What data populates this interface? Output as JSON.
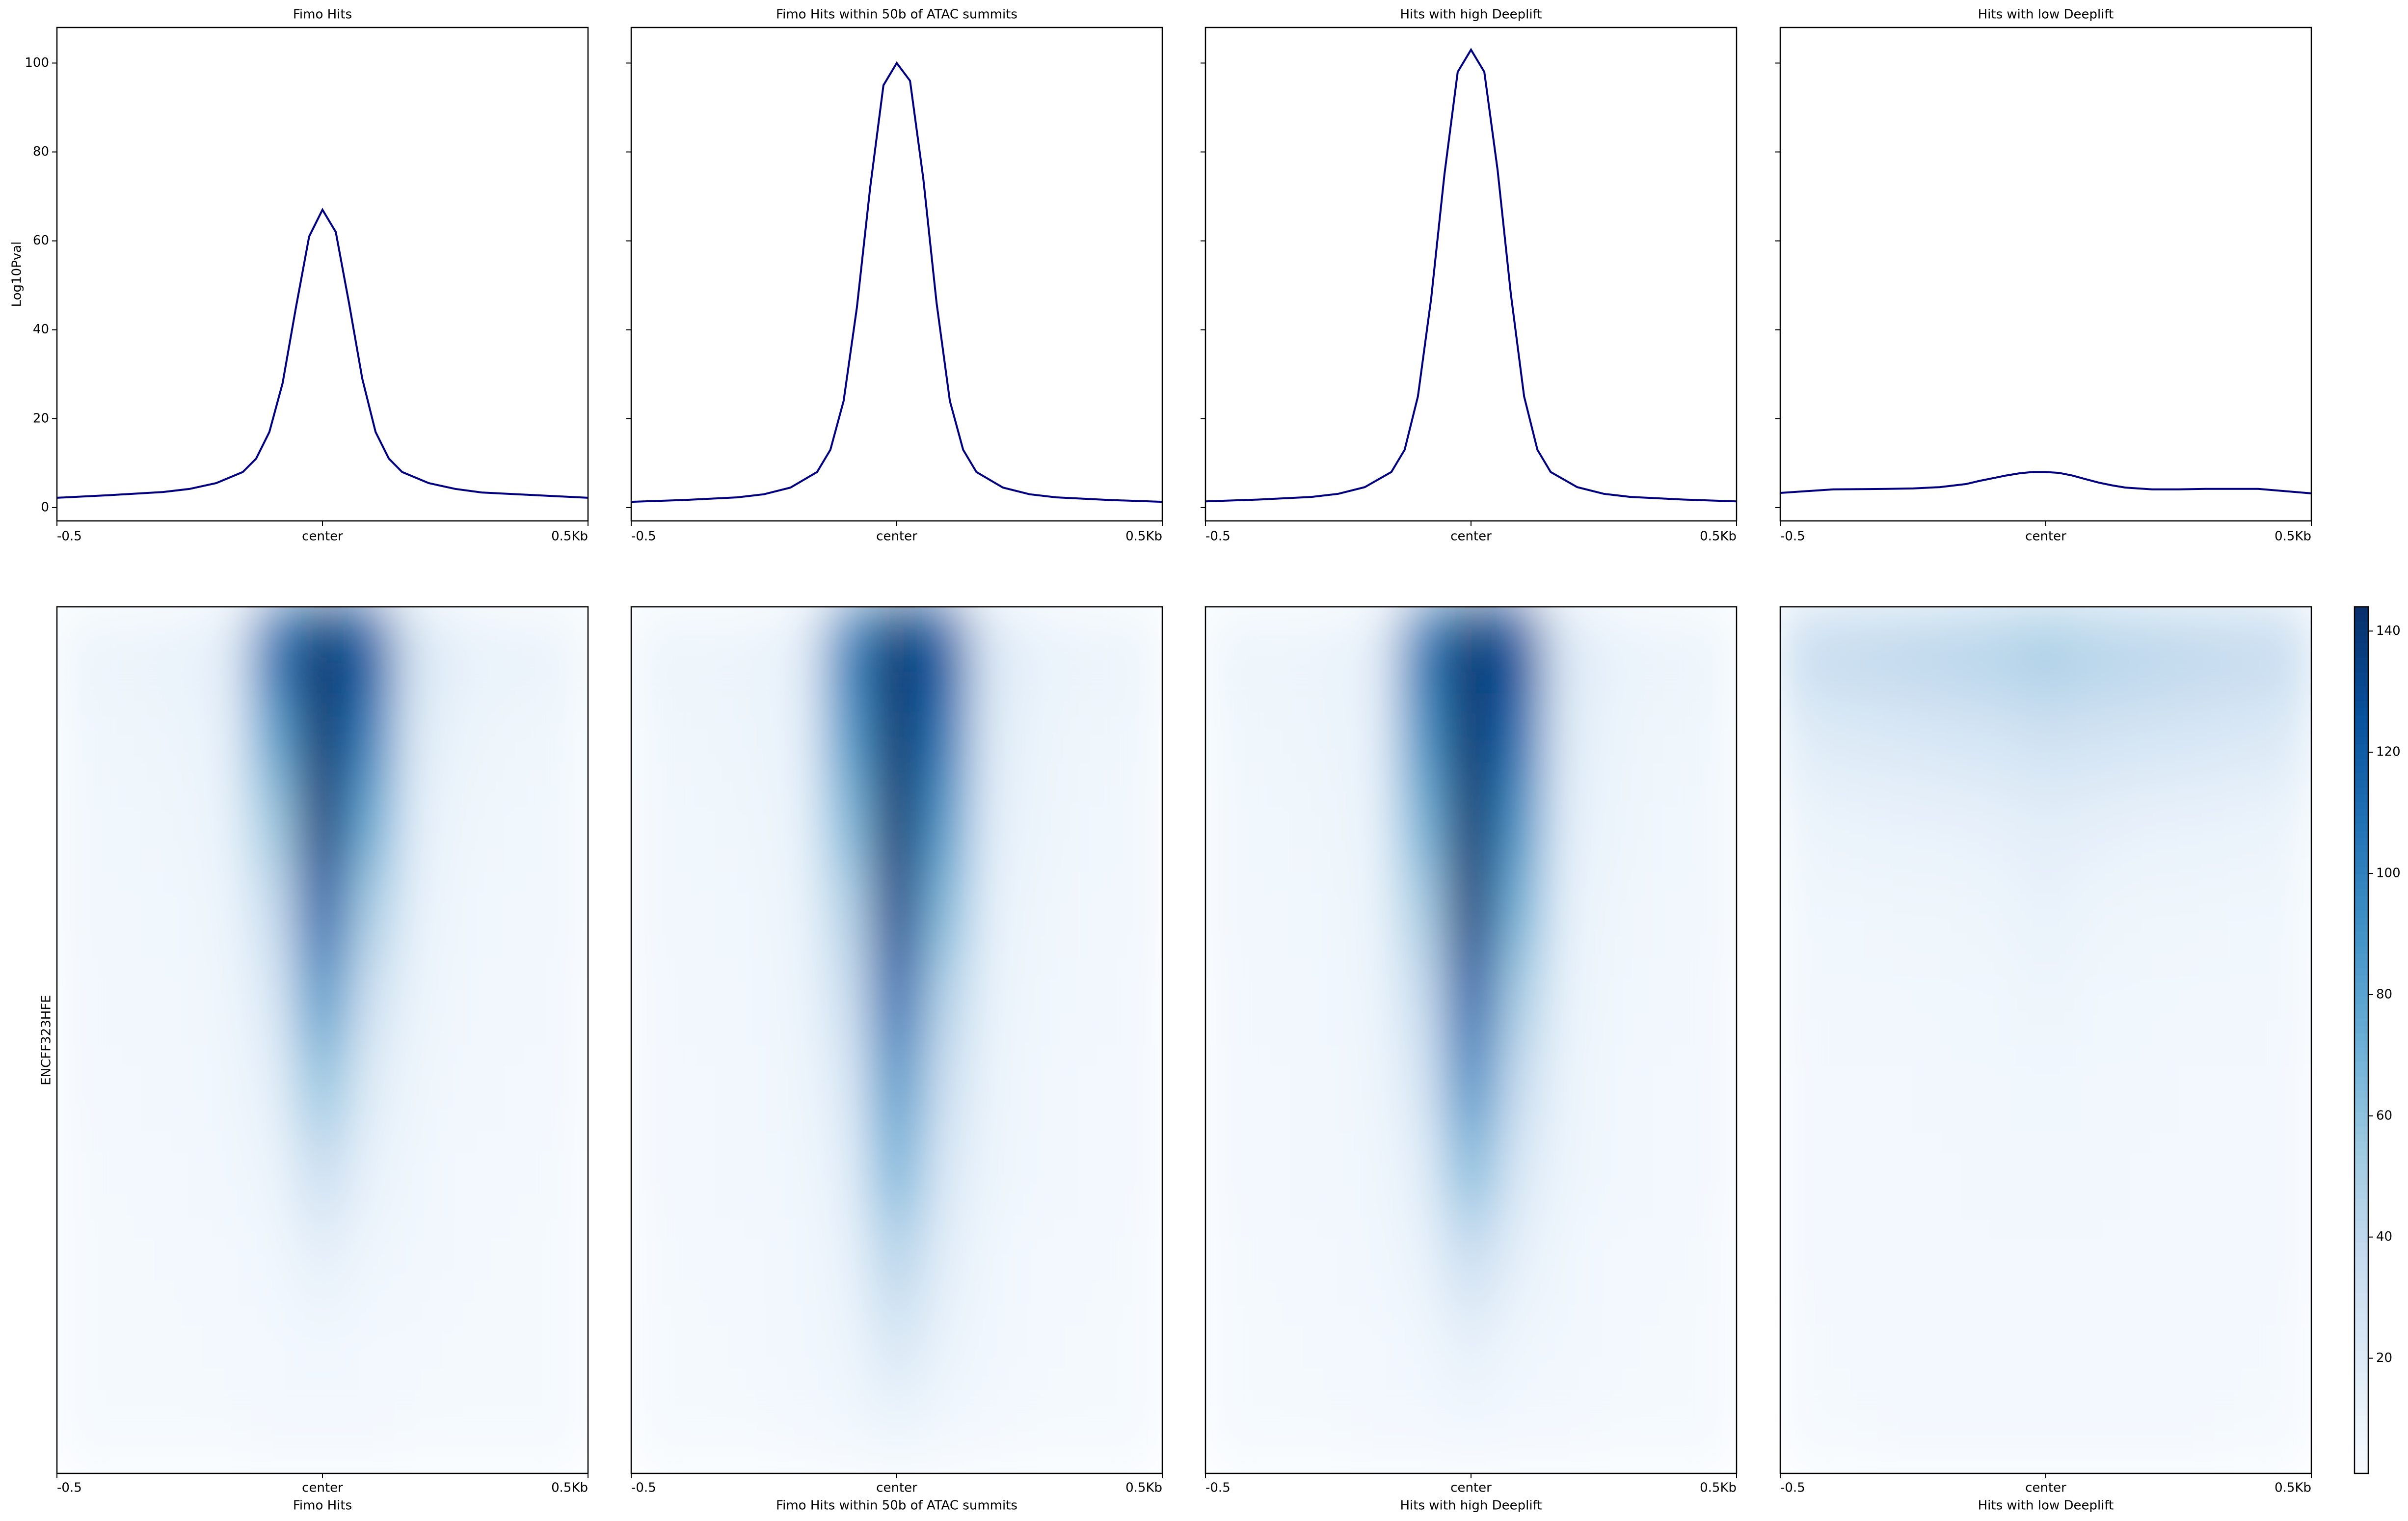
{
  "chart_data": [
    {
      "type": "line",
      "title": "Fimo Hits",
      "ylabel": "Log10Pval",
      "color": "#000080",
      "x": [
        -0.5,
        -0.4,
        -0.3,
        -0.25,
        -0.2,
        -0.15,
        -0.125,
        -0.1,
        -0.075,
        -0.05,
        -0.025,
        0,
        0.025,
        0.05,
        0.075,
        0.1,
        0.125,
        0.15,
        0.2,
        0.25,
        0.3,
        0.4,
        0.5
      ],
      "values": [
        2.2,
        2.8,
        3.5,
        4.2,
        5.5,
        8,
        11,
        17,
        28,
        45,
        61,
        67,
        62,
        46,
        29,
        17,
        11,
        8,
        5.5,
        4.2,
        3.4,
        2.8,
        2.2
      ],
      "xlim": [
        -0.5,
        0.5
      ],
      "xticks": [
        -0.5,
        {
          "value": 0,
          "label": "center"
        },
        {
          "value": 0.5,
          "label": "0.5Kb"
        }
      ],
      "ylim": [
        -3,
        108
      ],
      "yticks": [
        0,
        20,
        40,
        60,
        80,
        100
      ],
      "show_ytick_labels": true
    },
    {
      "type": "line",
      "title": "Fimo Hits within 50b of ATAC summits",
      "color": "#000080",
      "x": [
        -0.5,
        -0.4,
        -0.3,
        -0.25,
        -0.2,
        -0.15,
        -0.125,
        -0.1,
        -0.075,
        -0.05,
        -0.025,
        0,
        0.025,
        0.05,
        0.075,
        0.1,
        0.125,
        0.15,
        0.2,
        0.25,
        0.3,
        0.4,
        0.5
      ],
      "values": [
        1.3,
        1.7,
        2.3,
        3,
        4.5,
        8,
        13,
        24,
        45,
        72,
        95,
        100,
        96,
        74,
        46,
        24,
        13,
        8,
        4.5,
        3,
        2.3,
        1.7,
        1.3
      ],
      "xlim": [
        -0.5,
        0.5
      ],
      "xticks": [
        -0.5,
        {
          "value": 0,
          "label": "center"
        },
        {
          "value": 0.5,
          "label": "0.5Kb"
        }
      ],
      "ylim": [
        -3,
        108
      ],
      "yticks": [
        0,
        20,
        40,
        60,
        80,
        100
      ],
      "show_ytick_labels": false
    },
    {
      "type": "line",
      "title": "Hits with high Deeplift",
      "color": "#000080",
      "x": [
        -0.5,
        -0.4,
        -0.3,
        -0.25,
        -0.2,
        -0.15,
        -0.125,
        -0.1,
        -0.075,
        -0.05,
        -0.025,
        0,
        0.025,
        0.05,
        0.075,
        0.1,
        0.125,
        0.15,
        0.2,
        0.25,
        0.3,
        0.4,
        0.5
      ],
      "values": [
        1.4,
        1.8,
        2.4,
        3.1,
        4.6,
        8,
        13,
        25,
        47,
        75,
        98,
        103,
        98,
        76,
        48,
        25,
        13,
        8,
        4.6,
        3.1,
        2.4,
        1.8,
        1.4
      ],
      "xlim": [
        -0.5,
        0.5
      ],
      "xticks": [
        -0.5,
        {
          "value": 0,
          "label": "center"
        },
        {
          "value": 0.5,
          "label": "0.5Kb"
        }
      ],
      "ylim": [
        -3,
        108
      ],
      "yticks": [
        0,
        20,
        40,
        60,
        80,
        100
      ],
      "show_ytick_labels": false
    },
    {
      "type": "line",
      "title": "Hits with low Deeplift",
      "color": "#000080",
      "x": [
        -0.5,
        -0.4,
        -0.3,
        -0.25,
        -0.2,
        -0.15,
        -0.125,
        -0.1,
        -0.075,
        -0.05,
        -0.025,
        0,
        0.025,
        0.05,
        0.075,
        0.1,
        0.125,
        0.15,
        0.2,
        0.25,
        0.3,
        0.4,
        0.5
      ],
      "values": [
        3.3,
        4.1,
        4.2,
        4.3,
        4.6,
        5.3,
        6,
        6.6,
        7.2,
        7.7,
        8,
        8,
        7.8,
        7.2,
        6.4,
        5.6,
        5,
        4.5,
        4.1,
        4.1,
        4.2,
        4.2,
        3.2
      ],
      "xlim": [
        -0.5,
        0.5
      ],
      "xticks": [
        -0.5,
        {
          "value": 0,
          "label": "center"
        },
        {
          "value": 0.5,
          "label": "0.5Kb"
        }
      ],
      "ylim": [
        -3,
        108
      ],
      "yticks": [
        0,
        20,
        40,
        60,
        80,
        100
      ],
      "show_ytick_labels": false
    },
    {
      "type": "heatmap",
      "xlabel": "Fimo Hits",
      "ylabel": "ENCFF323HFE",
      "xlim": [
        -0.5,
        0.5
      ],
      "xticks": [
        -0.5,
        {
          "value": 0,
          "label": "center"
        },
        {
          "value": 0.5,
          "label": "0.5Kb"
        }
      ],
      "zlim": [
        1,
        144
      ],
      "colormap": [
        "#f7fbff",
        "#deebf7",
        "#c6dbef",
        "#9ecae1",
        "#6baed6",
        "#4292c6",
        "#2171b5",
        "#08519c",
        "#08306b"
      ],
      "values": [
        [
          8,
          9,
          10,
          15,
          110,
          144,
          120,
          25,
          12,
          10,
          9
        ],
        [
          6,
          7,
          8,
          12,
          80,
          144,
          100,
          18,
          9,
          7,
          6
        ],
        [
          5,
          6,
          7,
          10,
          55,
          140,
          75,
          14,
          7,
          6,
          5
        ],
        [
          5,
          5,
          6,
          8,
          35,
          120,
          50,
          11,
          6,
          5,
          5
        ],
        [
          4,
          5,
          5,
          7,
          22,
          90,
          30,
          9,
          5,
          5,
          4
        ],
        [
          4,
          4,
          5,
          6,
          14,
          60,
          18,
          7,
          5,
          4,
          4
        ],
        [
          3,
          4,
          4,
          5,
          9,
          35,
          11,
          6,
          4,
          4,
          3
        ],
        [
          3,
          3,
          4,
          4,
          6,
          14,
          7,
          5,
          4,
          3,
          3
        ],
        [
          3,
          3,
          3,
          4,
          4,
          6,
          4,
          4,
          3,
          3,
          3
        ],
        [
          3,
          3,
          3,
          3,
          4,
          4,
          4,
          3,
          3,
          3,
          3
        ]
      ]
    },
    {
      "type": "heatmap",
      "xlabel": "Fimo Hits within 50b of ATAC summits",
      "xlim": [
        -0.5,
        0.5
      ],
      "xticks": [
        -0.5,
        {
          "value": 0,
          "label": "center"
        },
        {
          "value": 0.5,
          "label": "0.5Kb"
        }
      ],
      "zlim": [
        1,
        144
      ],
      "colormap": [
        "#f7fbff",
        "#deebf7",
        "#c6dbef",
        "#9ecae1",
        "#6baed6",
        "#4292c6",
        "#2171b5",
        "#08519c",
        "#08306b"
      ],
      "values": [
        [
          8,
          8,
          9,
          14,
          100,
          144,
          120,
          22,
          11,
          9,
          8
        ],
        [
          6,
          7,
          8,
          12,
          85,
          144,
          105,
          18,
          9,
          7,
          6
        ],
        [
          5,
          6,
          7,
          10,
          65,
          144,
          85,
          15,
          8,
          6,
          5
        ],
        [
          5,
          5,
          6,
          9,
          45,
          135,
          65,
          12,
          7,
          5,
          5
        ],
        [
          4,
          5,
          5,
          8,
          32,
          115,
          45,
          10,
          6,
          5,
          4
        ],
        [
          4,
          4,
          5,
          7,
          22,
          90,
          32,
          9,
          5,
          4,
          4
        ],
        [
          4,
          4,
          5,
          6,
          15,
          70,
          22,
          8,
          5,
          4,
          4
        ],
        [
          3,
          4,
          4,
          5,
          11,
          45,
          15,
          6,
          4,
          4,
          3
        ],
        [
          3,
          3,
          4,
          5,
          8,
          25,
          10,
          5,
          4,
          3,
          3
        ],
        [
          3,
          3,
          3,
          4,
          5,
          8,
          5,
          4,
          3,
          3,
          3
        ]
      ]
    },
    {
      "type": "heatmap",
      "xlabel": "Hits with high Deeplift",
      "xlim": [
        -0.5,
        0.5
      ],
      "xticks": [
        -0.5,
        {
          "value": 0,
          "label": "center"
        },
        {
          "value": 0.5,
          "label": "0.5Kb"
        }
      ],
      "zlim": [
        1,
        144
      ],
      "colormap": [
        "#f7fbff",
        "#deebf7",
        "#c6dbef",
        "#9ecae1",
        "#6baed6",
        "#4292c6",
        "#2171b5",
        "#08519c",
        "#08306b"
      ],
      "values": [
        [
          8,
          8,
          9,
          14,
          105,
          144,
          125,
          22,
          11,
          9,
          8
        ],
        [
          6,
          7,
          8,
          12,
          90,
          144,
          110,
          18,
          9,
          7,
          6
        ],
        [
          5,
          6,
          7,
          10,
          70,
          144,
          90,
          15,
          8,
          6,
          5
        ],
        [
          5,
          5,
          6,
          9,
          50,
          140,
          70,
          12,
          7,
          5,
          5
        ],
        [
          4,
          5,
          5,
          8,
          35,
          120,
          50,
          10,
          6,
          5,
          4
        ],
        [
          4,
          4,
          5,
          7,
          24,
          95,
          35,
          9,
          5,
          4,
          4
        ],
        [
          4,
          4,
          5,
          6,
          15,
          65,
          22,
          8,
          5,
          4,
          4
        ],
        [
          3,
          4,
          4,
          5,
          10,
          35,
          13,
          6,
          4,
          4,
          3
        ],
        [
          3,
          3,
          4,
          4,
          6,
          14,
          7,
          5,
          4,
          3,
          3
        ],
        [
          3,
          3,
          3,
          4,
          4,
          5,
          4,
          4,
          3,
          3,
          3
        ]
      ]
    },
    {
      "type": "heatmap",
      "xlabel": "Hits with low Deeplift",
      "xlim": [
        -0.5,
        0.5
      ],
      "xticks": [
        -0.5,
        {
          "value": 0,
          "label": "center"
        },
        {
          "value": 0.5,
          "label": "0.5Kb"
        }
      ],
      "zlim": [
        1,
        144
      ],
      "colormap": [
        "#f7fbff",
        "#deebf7",
        "#c6dbef",
        "#9ecae1",
        "#6baed6",
        "#4292c6",
        "#2171b5",
        "#08519c",
        "#08306b"
      ],
      "colorbar": true,
      "zticks": [
        20,
        40,
        60,
        80,
        100,
        120,
        140
      ],
      "values": [
        [
          35,
          38,
          40,
          42,
          45,
          50,
          45,
          42,
          40,
          38,
          35
        ],
        [
          18,
          20,
          22,
          24,
          26,
          30,
          28,
          26,
          24,
          22,
          20
        ],
        [
          9,
          10,
          11,
          12,
          13,
          16,
          14,
          12,
          11,
          10,
          9
        ],
        [
          6,
          6,
          7,
          7,
          8,
          12,
          8,
          7,
          7,
          6,
          6
        ],
        [
          5,
          5,
          5,
          6,
          6,
          8,
          6,
          6,
          5,
          5,
          5
        ],
        [
          4,
          4,
          4,
          5,
          5,
          6,
          5,
          5,
          4,
          4,
          4
        ],
        [
          4,
          4,
          4,
          4,
          5,
          5,
          5,
          4,
          4,
          4,
          4
        ],
        [
          4,
          4,
          4,
          4,
          4,
          4,
          4,
          4,
          4,
          4,
          4
        ],
        [
          3,
          4,
          4,
          4,
          4,
          4,
          4,
          4,
          4,
          4,
          3
        ],
        [
          3,
          3,
          4,
          4,
          4,
          4,
          4,
          4,
          4,
          3,
          3
        ]
      ]
    }
  ]
}
